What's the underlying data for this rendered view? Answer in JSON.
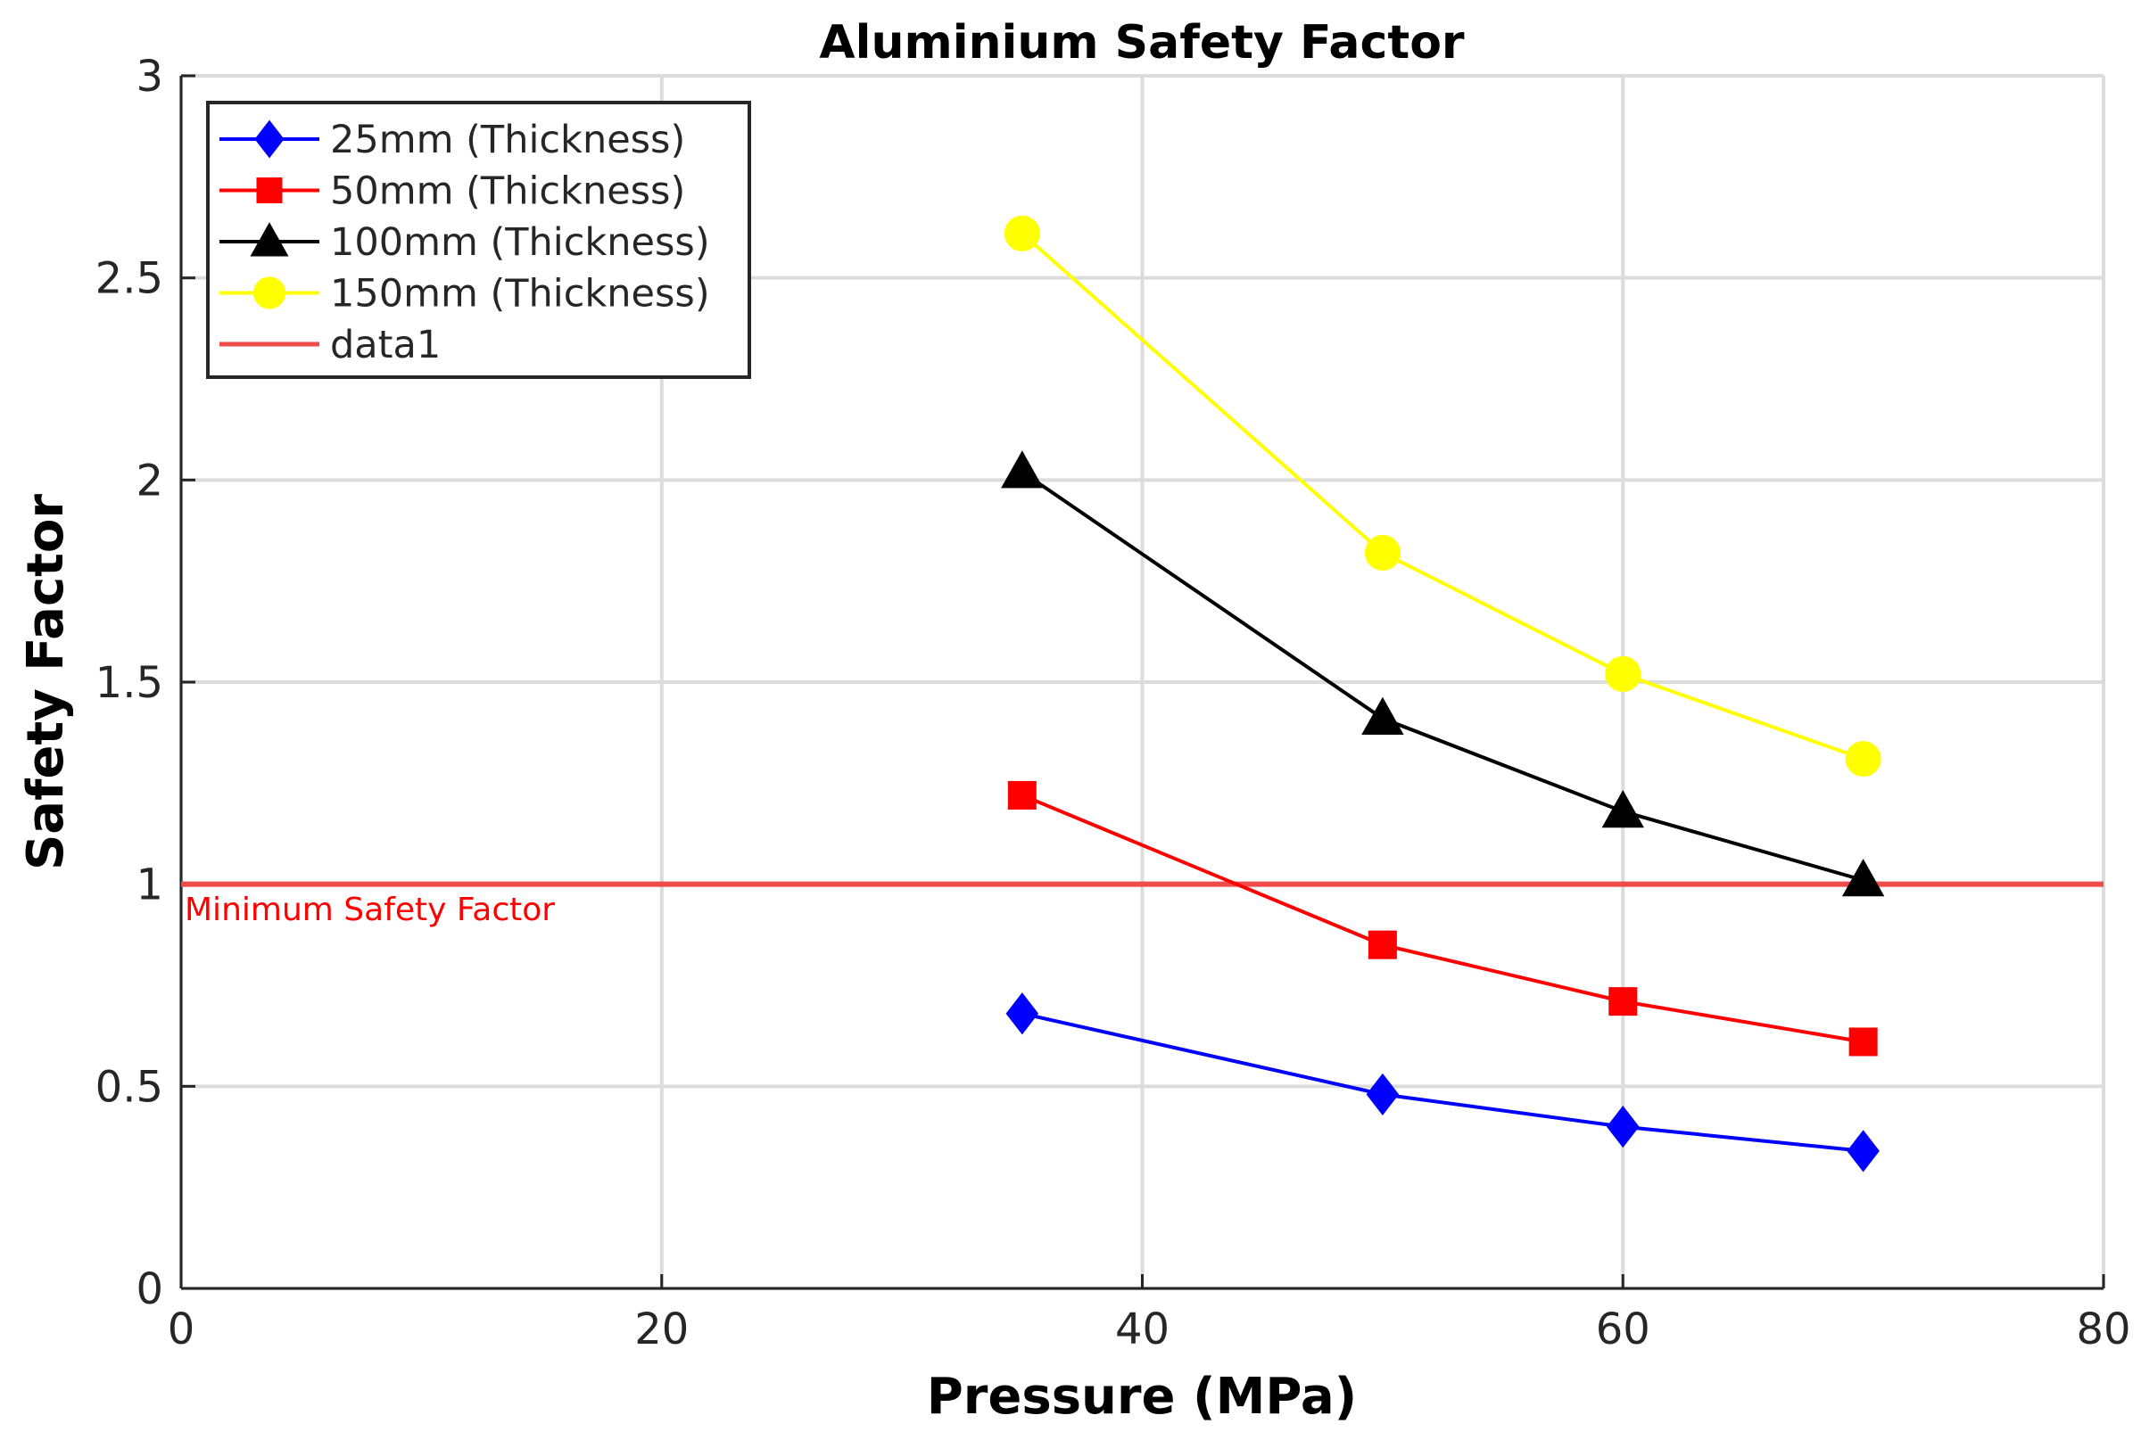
{
  "chart_data": {
    "type": "line",
    "title": "Aluminium Safety Factor",
    "xlabel": "Pressure (MPa)",
    "ylabel": "Safety Factor",
    "xlim": [
      0,
      80
    ],
    "ylim": [
      0,
      3
    ],
    "xticks": [
      0,
      20,
      40,
      60,
      80
    ],
    "xtick_labels": [
      "0",
      "20",
      "40",
      "60",
      "80"
    ],
    "yticks": [
      0,
      0.5,
      1,
      1.5,
      2,
      2.5,
      3
    ],
    "ytick_labels": [
      "0",
      "0.5",
      "1",
      "1.5",
      "2",
      "2.5",
      "3"
    ],
    "grid": true,
    "legend_position": "top-left",
    "x": [
      35,
      50,
      60,
      70
    ],
    "series": [
      {
        "name": "25mm (Thickness)",
        "color": "#0000ff",
        "marker": "diamond",
        "values": [
          0.68,
          0.48,
          0.4,
          0.34
        ]
      },
      {
        "name": "50mm (Thickness)",
        "color": "#ff0000",
        "marker": "square",
        "values": [
          1.22,
          0.85,
          0.71,
          0.61
        ]
      },
      {
        "name": "100mm (Thickness)",
        "color": "#000000",
        "marker": "triangle",
        "values": [
          2.02,
          1.41,
          1.18,
          1.01
        ]
      },
      {
        "name": "150mm (Thickness)",
        "color": "#ffff00",
        "marker": "circle",
        "values": [
          2.61,
          1.82,
          1.52,
          1.31
        ]
      }
    ],
    "reference_line": {
      "name": "data1",
      "y": 1,
      "color": "#f04a4a"
    },
    "annotations": [
      {
        "text": "Minimum Safety Factor",
        "x": 0,
        "y": 1,
        "color": "#ff0000"
      }
    ]
  }
}
